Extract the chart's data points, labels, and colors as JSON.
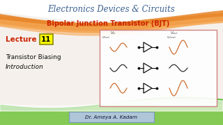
{
  "bg_color": "#f5f0eb",
  "title": "Electronics Devices & Circuits",
  "title_color": "#3a6090",
  "subtitle": "Bipolar Junction Transistor (BJT)",
  "subtitle_color": "#cc2200",
  "lecture_label": "Lecture",
  "lecture_label_color": "#cc2200",
  "lecture_num": "11",
  "lecture_box_color": "#ffff00",
  "line1": "Transistor Biasing",
  "line2": "Introduction",
  "text_color": "#111111",
  "footer": "Dr. Ameya A. Kadam",
  "footer_bg": "#aec6d8",
  "wave_orange": "#e8872a",
  "wave_orange_light": "#f5a855",
  "wave_green": "#55bb33",
  "wave_green_light": "#88cc55",
  "diagram_border": "#cc7777",
  "wave_orange_color": "#cc6622",
  "wave_black_color": "#222222",
  "transistor_color": "#111111",
  "label_color": "#444444"
}
